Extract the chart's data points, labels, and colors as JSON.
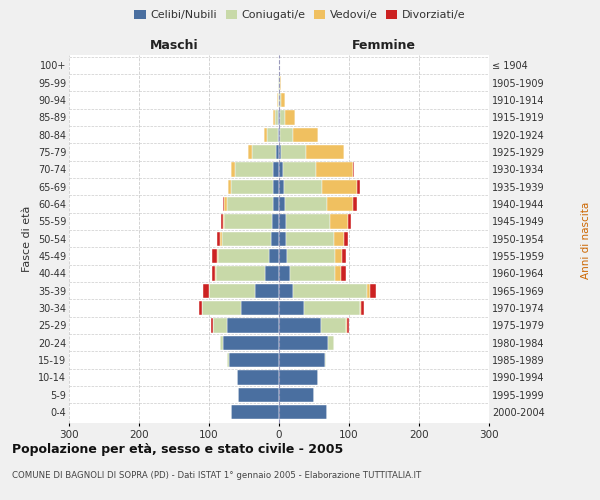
{
  "age_groups": [
    "0-4",
    "5-9",
    "10-14",
    "15-19",
    "20-24",
    "25-29",
    "30-34",
    "35-39",
    "40-44",
    "45-49",
    "50-54",
    "55-59",
    "60-64",
    "65-69",
    "70-74",
    "75-79",
    "80-84",
    "85-89",
    "90-94",
    "95-99",
    "100+"
  ],
  "birth_years": [
    "2000-2004",
    "1995-1999",
    "1990-1994",
    "1985-1989",
    "1980-1984",
    "1975-1979",
    "1970-1974",
    "1965-1969",
    "1960-1964",
    "1955-1959",
    "1950-1954",
    "1945-1949",
    "1940-1944",
    "1935-1939",
    "1930-1934",
    "1925-1929",
    "1920-1924",
    "1915-1919",
    "1910-1914",
    "1905-1909",
    "≤ 1904"
  ],
  "male": {
    "celibi": [
      68,
      58,
      60,
      72,
      80,
      75,
      55,
      35,
      20,
      15,
      12,
      10,
      9,
      8,
      8,
      4,
      2,
      1,
      0,
      0,
      0
    ],
    "coniugati": [
      0,
      0,
      0,
      2,
      5,
      20,
      55,
      65,
      70,
      72,
      70,
      68,
      65,
      60,
      55,
      35,
      15,
      5,
      2,
      1,
      0
    ],
    "vedovi": [
      0,
      0,
      0,
      0,
      0,
      0,
      0,
      0,
      1,
      1,
      2,
      2,
      4,
      5,
      6,
      5,
      5,
      3,
      1,
      0,
      0
    ],
    "divorziati": [
      0,
      0,
      0,
      0,
      0,
      2,
      5,
      8,
      5,
      8,
      5,
      3,
      2,
      0,
      0,
      0,
      0,
      0,
      0,
      0,
      0
    ]
  },
  "female": {
    "nubili": [
      68,
      50,
      55,
      65,
      70,
      60,
      35,
      20,
      15,
      12,
      10,
      10,
      8,
      7,
      5,
      3,
      2,
      1,
      0,
      0,
      0
    ],
    "coniugate": [
      0,
      0,
      0,
      2,
      8,
      35,
      80,
      105,
      65,
      68,
      68,
      63,
      60,
      55,
      48,
      35,
      18,
      7,
      3,
      1,
      0
    ],
    "vedove": [
      0,
      0,
      0,
      0,
      0,
      2,
      2,
      5,
      8,
      10,
      15,
      25,
      38,
      50,
      52,
      55,
      35,
      15,
      5,
      2,
      0
    ],
    "divorziate": [
      0,
      0,
      0,
      0,
      0,
      3,
      5,
      8,
      8,
      5,
      5,
      5,
      5,
      3,
      2,
      0,
      0,
      0,
      0,
      0,
      0
    ]
  },
  "colors": {
    "celibi": "#4a6fa0",
    "coniugati": "#c8d9a8",
    "vedovi": "#f0c060",
    "divorziati": "#cc2222"
  },
  "xlim": 300,
  "title": "Popolazione per età, sesso e stato civile - 2005",
  "subtitle": "COMUNE DI BAGNOLI DI SOPRA (PD) - Dati ISTAT 1° gennaio 2005 - Elaborazione TUTTITALIA.IT",
  "ylabel_left": "Fasce di età",
  "ylabel_right": "Anni di nascita",
  "xlabel_maschi": "Maschi",
  "xlabel_femmine": "Femmine",
  "bg_color": "#f0f0f0",
  "plot_bg_color": "#ffffff",
  "grid_color": "#cccccc"
}
